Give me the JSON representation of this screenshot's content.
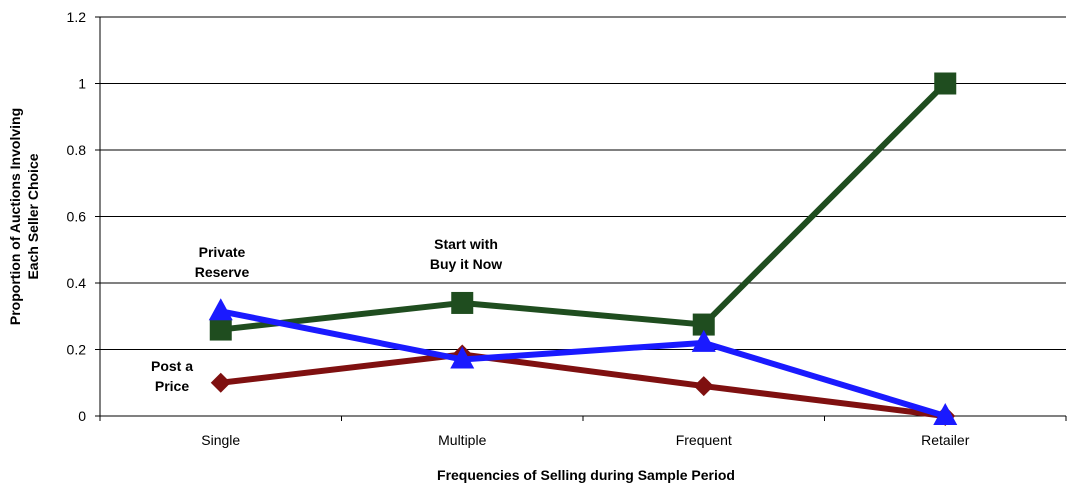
{
  "chart_data": {
    "type": "line",
    "title": "",
    "xlabel": "Frequencies of Selling during Sample Period",
    "ylabel": [
      "Proportion of Auctions Involving",
      "Each Seller Choice"
    ],
    "categories": [
      "Single",
      "Multiple",
      "Frequent",
      "Retailer"
    ],
    "ylim": [
      0,
      1.2
    ],
    "yticks": [
      "0",
      "0.2",
      "0.4",
      "0.6",
      "0.8",
      "1",
      "1.2"
    ],
    "grid": true,
    "legend": "none",
    "series": [
      {
        "key": "start_buy_now",
        "label": [
          "Start with",
          "Buy it Now"
        ],
        "color": "#1f4d1f",
        "marker": "square",
        "values": [
          0.26,
          0.34,
          0.275,
          1.0
        ]
      },
      {
        "key": "post_price",
        "label": [
          "Post a",
          "Price"
        ],
        "color": "#7f1010",
        "marker": "diamond",
        "values": [
          0.1,
          0.185,
          0.09,
          0.0
        ]
      },
      {
        "key": "private_reserve",
        "label": [
          "Private",
          "Reserve"
        ],
        "color": "#1a1aff",
        "marker": "triangle",
        "values": [
          0.315,
          0.17,
          0.22,
          0.0
        ]
      }
    ]
  }
}
